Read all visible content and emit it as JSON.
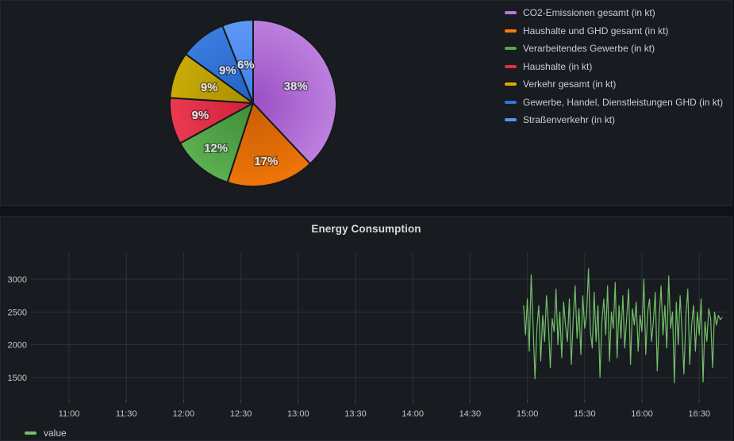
{
  "theme": {
    "canvas_bg": "#111217",
    "panel_bg": "#181b1f",
    "grid_color": "rgba(204,204,220,0.12)",
    "axis_text_color": "#c3c6cc",
    "legend_text_color": "#ccccdc"
  },
  "timeseries": {
    "title": "Energy Consumption",
    "legend_label": "value"
  },
  "chart_data": [
    {
      "type": "pie",
      "legend_position": "right",
      "slices": [
        {
          "label": "CO2-Emissionen gesamt (in kt)",
          "pct": 38,
          "color": "#B877D9",
          "center_color": "#9a4fc4",
          "rim_color": "#bd80de"
        },
        {
          "label": "Haushalte und GHD gesamt (in kt)",
          "pct": 17,
          "color": "#FF780A",
          "center_color": "#c95d03",
          "rim_color": "#ee7508"
        },
        {
          "label": "Verarbeitendes Gewerbe (in kt)",
          "pct": 12,
          "color": "#56A64B",
          "center_color": "#3f8c3a",
          "rim_color": "#5bb04f"
        },
        {
          "label": "Haushalte (in kt)",
          "pct": 9,
          "color": "#E02F44",
          "center_color": "#d11f38",
          "rim_color": "#ea3a52"
        },
        {
          "label": "Verkehr gesamt (in kt)",
          "pct": 9,
          "color": "#D9AF00",
          "center_color": "#a98c00",
          "rim_color": "#c9ab07"
        },
        {
          "label": "Gewerbe, Handel, Dienstleistungen GHD (in kt)",
          "pct": 9,
          "color": "#3274D9",
          "center_color": "#2160c4",
          "rim_color": "#3b7dde"
        },
        {
          "label": "Straßenverkehr (in kt)",
          "pct": 6,
          "color": "#5794F2",
          "center_color": "#3f80ea",
          "rim_color": "#5c98f5"
        }
      ]
    },
    {
      "type": "line",
      "title": "Energy Consumption",
      "x_ticks": [
        "11:00",
        "11:30",
        "12:00",
        "12:30",
        "13:00",
        "13:30",
        "14:00",
        "14:30",
        "15:00",
        "15:30",
        "16:00",
        "16:30"
      ],
      "y_ticks": [
        1500,
        2000,
        2500,
        3000
      ],
      "grid": true,
      "legend_position": "bottom-left",
      "series": [
        {
          "name": "value",
          "color": "#73BF69",
          "start_time": "14:58",
          "interval_minutes": 1,
          "values": [
            2600,
            2150,
            2700,
            1900,
            3070,
            2300,
            1480,
            2250,
            2600,
            1750,
            2450,
            2050,
            2750,
            2300,
            1650,
            2400,
            2200,
            2850,
            2000,
            2500,
            1800,
            2650,
            2300,
            2050,
            2700,
            1700,
            2400,
            2900,
            2100,
            2550,
            1850,
            2750,
            2250,
            2450,
            3160,
            2200,
            1950,
            2800,
            2050,
            2600,
            1500,
            2350,
            2700,
            2150,
            2900,
            1750,
            2500,
            2250,
            2950,
            1800,
            2600,
            2100,
            2750,
            1950,
            2400,
            2850,
            1700,
            2550,
            2300,
            2650,
            1900,
            2450,
            2200,
            3000,
            1850,
            2500,
            2700,
            2050,
            2350,
            2800,
            1600,
            2400,
            2900,
            2150,
            2600,
            1950,
            3050,
            2250,
            2500,
            1420,
            2650,
            2000,
            2750,
            2200,
            1550,
            2450,
            2850,
            1700,
            2300,
            2600,
            1900,
            2500,
            2150,
            2700,
            1430,
            2350,
            2050,
            2550,
            2400,
            1650,
            2500,
            2300,
            2450,
            2380,
            2420
          ]
        }
      ]
    }
  ]
}
